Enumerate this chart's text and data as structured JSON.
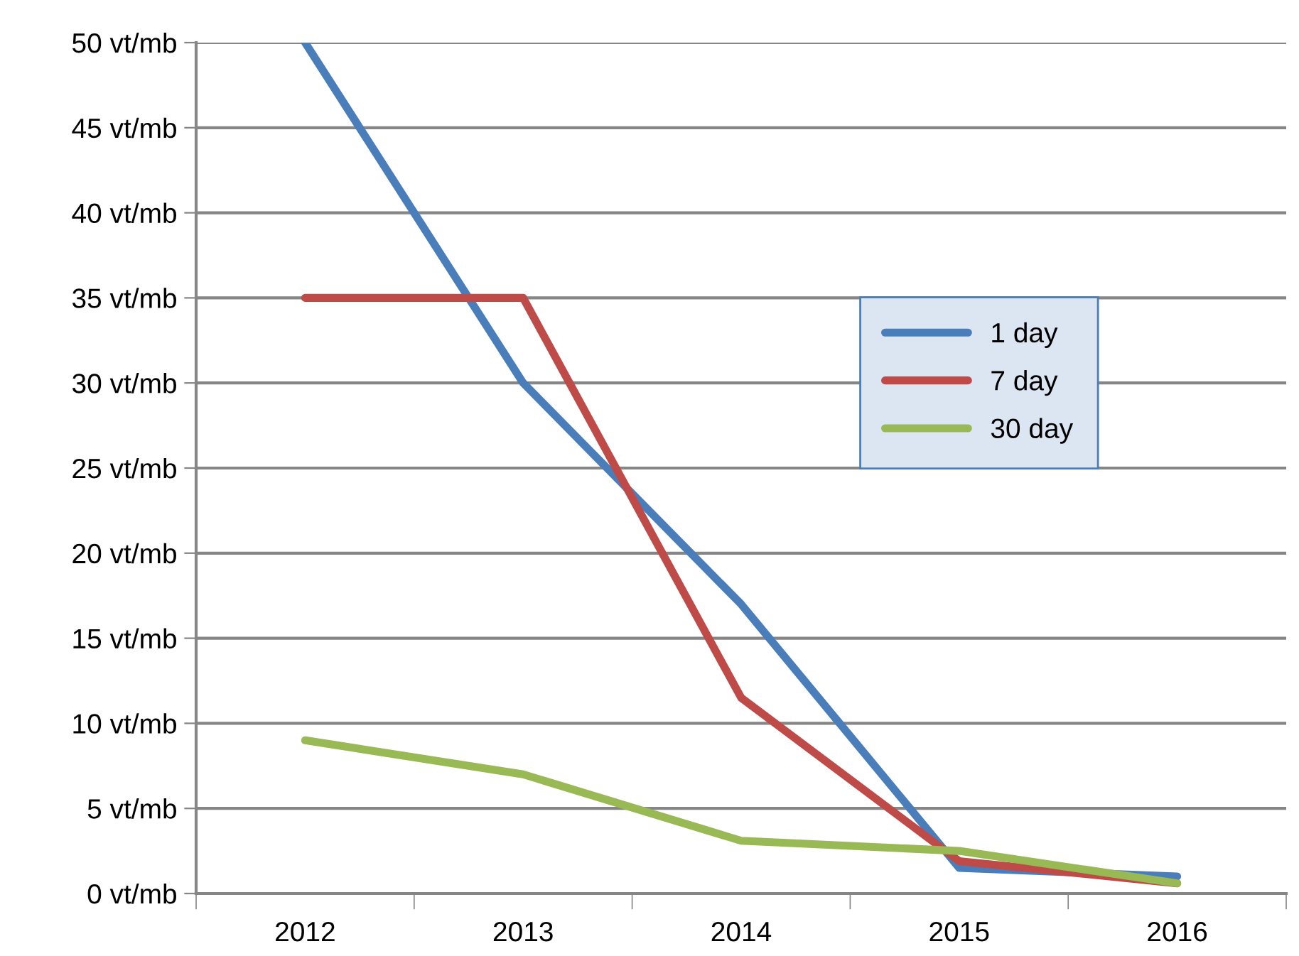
{
  "chart_data": {
    "type": "line",
    "categories": [
      "2012",
      "2013",
      "2014",
      "2015",
      "2016"
    ],
    "series": [
      {
        "name": "1 day",
        "color": "#4a7ebb",
        "values": [
          50,
          30,
          17,
          1.5,
          1.0
        ]
      },
      {
        "name": "7 day",
        "color": "#be4b48",
        "values": [
          35,
          35,
          11.5,
          1.9,
          0.6
        ]
      },
      {
        "name": "30 day",
        "color": "#98b954",
        "values": [
          9,
          7,
          3.1,
          2.5,
          0.6
        ]
      }
    ],
    "ylim": [
      0,
      50
    ],
    "yticks": [
      {
        "value": 0,
        "label": "0 vt/mb"
      },
      {
        "value": 5,
        "label": "5 vt/mb"
      },
      {
        "value": 10,
        "label": "10 vt/mb"
      },
      {
        "value": 15,
        "label": "15 vt/mb"
      },
      {
        "value": 20,
        "label": "20 vt/mb"
      },
      {
        "value": 25,
        "label": "25 vt/mb"
      },
      {
        "value": 30,
        "label": "30 vt/mb"
      },
      {
        "value": 35,
        "label": "35 vt/mb"
      },
      {
        "value": 40,
        "label": "40 vt/mb"
      },
      {
        "value": 45,
        "label": "45 vt/mb"
      },
      {
        "value": 50,
        "label": "50 vt/mb"
      }
    ],
    "grid": "y",
    "legend": "right",
    "marker": "none",
    "line_style": "solid"
  }
}
